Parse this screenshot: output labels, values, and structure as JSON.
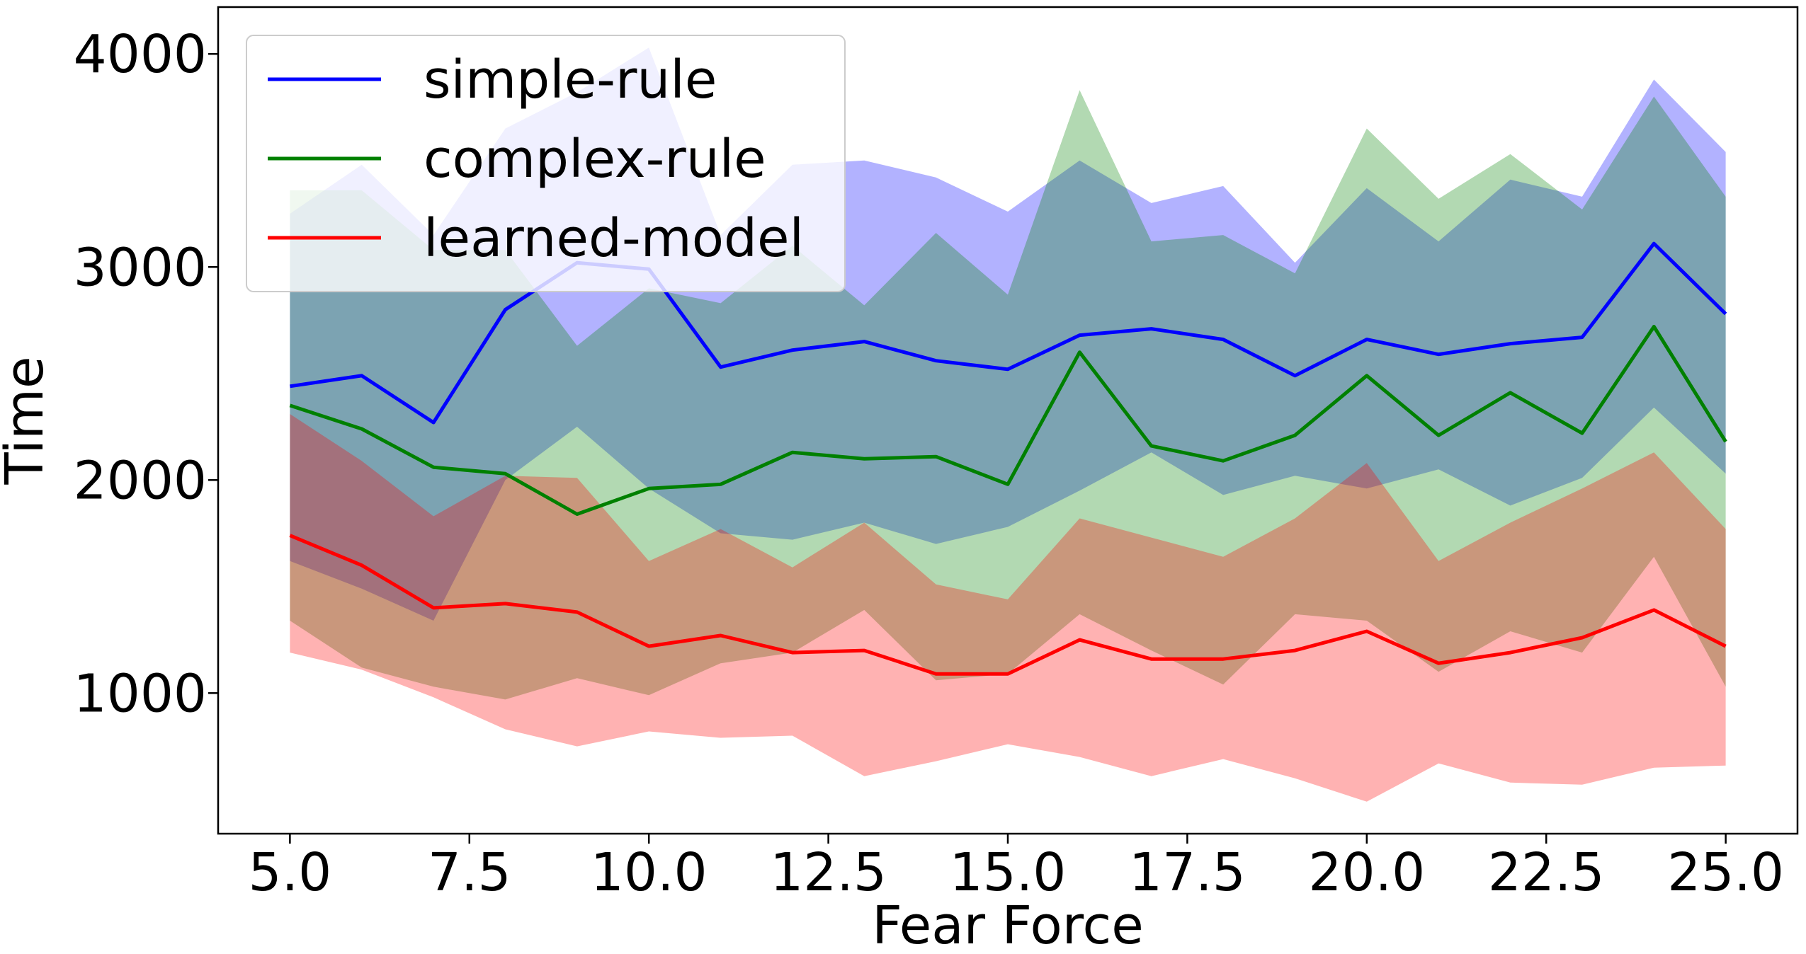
{
  "chart_data": {
    "type": "line",
    "title": "",
    "xlabel": "Fear Force",
    "ylabel": "Time",
    "xlim": [
      4.0,
      26.0
    ],
    "ylim": [
      340,
      4220
    ],
    "x_ticks": [
      5.0,
      7.5,
      10.0,
      12.5,
      15.0,
      17.5,
      20.0,
      22.5,
      25.0
    ],
    "x_tick_labels": [
      "5.0",
      "7.5",
      "10.0",
      "12.5",
      "15.0",
      "17.5",
      "20.0",
      "22.5",
      "25.0"
    ],
    "y_ticks": [
      1000,
      2000,
      3000,
      4000
    ],
    "y_tick_labels": [
      "1000",
      "2000",
      "3000",
      "4000"
    ],
    "grid": false,
    "legend_position": "upper-left",
    "x": [
      5,
      6,
      7,
      8,
      9,
      10,
      11,
      12,
      13,
      14,
      15,
      16,
      17,
      18,
      19,
      20,
      21,
      22,
      23,
      24,
      25
    ],
    "series": [
      {
        "name": "simple-rule",
        "color": "#0000ff",
        "band_color": "#0000ff",
        "band_opacity": 0.3,
        "values": [
          2440,
          2490,
          2270,
          2800,
          3020,
          2990,
          2530,
          2610,
          2650,
          2560,
          2520,
          2680,
          2710,
          2660,
          2490,
          2660,
          2590,
          2640,
          2670,
          3110,
          2780
        ],
        "upper": [
          3250,
          3480,
          3150,
          3650,
          3820,
          4030,
          3150,
          3480,
          3500,
          3420,
          3260,
          3500,
          3300,
          3380,
          3020,
          3370,
          3120,
          3410,
          3330,
          3880,
          3540
        ],
        "lower": [
          1620,
          1490,
          1340,
          2000,
          2250,
          1960,
          1750,
          1720,
          1800,
          1700,
          1780,
          1950,
          2130,
          1930,
          2020,
          1960,
          2050,
          1880,
          2010,
          2340,
          2030
        ]
      },
      {
        "name": "complex-rule",
        "color": "#008000",
        "band_color": "#008000",
        "band_opacity": 0.3,
        "values": [
          2350,
          2240,
          2060,
          2030,
          1840,
          1960,
          1980,
          2130,
          2100,
          2110,
          1980,
          2600,
          2160,
          2090,
          2210,
          2490,
          2210,
          2410,
          2220,
          2720,
          2180
        ],
        "upper": [
          3360,
          3360,
          3080,
          3080,
          2630,
          2900,
          2830,
          3100,
          2820,
          3160,
          2870,
          3830,
          3120,
          3150,
          2970,
          3650,
          3320,
          3530,
          3270,
          3800,
          3330
        ],
        "lower": [
          1340,
          1120,
          1030,
          970,
          1070,
          990,
          1140,
          1190,
          1390,
          1060,
          1090,
          1370,
          1200,
          1040,
          1370,
          1340,
          1100,
          1290,
          1190,
          1640,
          1030
        ]
      },
      {
        "name": "learned-model",
        "color": "#ff0000",
        "band_color": "#ff0000",
        "band_opacity": 0.3,
        "values": [
          1740,
          1600,
          1400,
          1420,
          1380,
          1220,
          1270,
          1190,
          1200,
          1090,
          1090,
          1250,
          1160,
          1160,
          1200,
          1290,
          1140,
          1190,
          1260,
          1390,
          1220
        ],
        "upper": [
          2310,
          2090,
          1830,
          2020,
          2010,
          1620,
          1770,
          1590,
          1800,
          1510,
          1440,
          1820,
          1730,
          1640,
          1820,
          2080,
          1620,
          1800,
          1960,
          2130,
          1770
        ],
        "lower": [
          1190,
          1110,
          980,
          830,
          750,
          820,
          790,
          800,
          610,
          680,
          760,
          700,
          610,
          690,
          600,
          490,
          670,
          580,
          570,
          650,
          660
        ]
      }
    ]
  }
}
